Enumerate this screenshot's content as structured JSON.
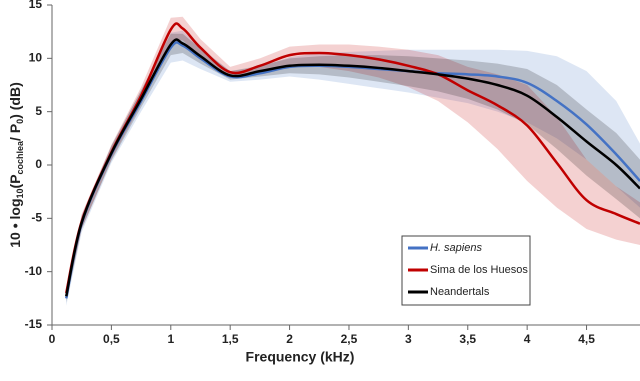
{
  "chart_data": {
    "type": "line",
    "x_label": "Frequency (kHz)",
    "y_label": [
      "10 • log",
      "10",
      "(P",
      "cochlea",
      "/ P",
      "0",
      ")  (dB)"
    ],
    "x": [
      0.12,
      0.25,
      0.5,
      0.75,
      1.0,
      1.1,
      1.25,
      1.5,
      1.75,
      2.0,
      2.25,
      2.5,
      2.75,
      3.0,
      3.25,
      3.5,
      3.75,
      4.0,
      4.25,
      4.5,
      4.75,
      4.95
    ],
    "series": [
      {
        "name": "H. sapiens",
        "color": "#4472c4",
        "values": [
          -12.5,
          -5.5,
          1.0,
          6.0,
          11.0,
          11.2,
          10.0,
          8.3,
          8.6,
          9.2,
          9.3,
          9.2,
          9.0,
          8.8,
          8.6,
          8.5,
          8.3,
          7.7,
          6.0,
          3.8,
          1.0,
          -1.5
        ],
        "lower": [
          -13.2,
          -6.3,
          0.2,
          5.0,
          9.6,
          9.8,
          9.0,
          7.8,
          8.0,
          8.3,
          8.0,
          7.6,
          7.2,
          6.8,
          6.3,
          5.8,
          5.0,
          4.0,
          2.5,
          0.5,
          -2.0,
          -4.0
        ],
        "upper": [
          -11.8,
          -4.7,
          1.8,
          7.0,
          12.4,
          12.6,
          11.0,
          8.8,
          9.2,
          10.1,
          10.5,
          10.6,
          10.7,
          10.8,
          10.8,
          10.8,
          10.8,
          10.7,
          10.2,
          8.8,
          6.0,
          2.0
        ]
      },
      {
        "name": "Sima de los Huesos",
        "color": "#c00000",
        "values": [
          -12.0,
          -5.3,
          1.2,
          6.5,
          12.7,
          12.8,
          11.0,
          8.7,
          9.3,
          10.3,
          10.5,
          10.3,
          9.9,
          9.3,
          8.5,
          7.0,
          5.6,
          3.7,
          0.2,
          -3.3,
          -4.6,
          -5.5
        ],
        "lower": [
          -12.6,
          -6.0,
          0.5,
          5.7,
          11.5,
          11.7,
          10.2,
          8.2,
          8.6,
          9.3,
          9.2,
          8.8,
          8.2,
          7.3,
          6.0,
          4.0,
          1.5,
          -1.5,
          -4.0,
          -6.0,
          -7.0,
          -7.5
        ],
        "upper": [
          -11.4,
          -4.6,
          1.9,
          7.3,
          13.8,
          13.9,
          11.8,
          9.2,
          10.0,
          11.1,
          11.3,
          11.3,
          11.1,
          10.8,
          10.3,
          9.2,
          8.5,
          7.5,
          4.5,
          0.5,
          -2.0,
          -3.5
        ]
      },
      {
        "name": "Neandertals",
        "color": "#000000",
        "values": [
          -12.3,
          -5.4,
          1.1,
          6.2,
          11.3,
          11.4,
          10.2,
          8.4,
          8.8,
          9.3,
          9.4,
          9.3,
          9.1,
          8.8,
          8.5,
          8.1,
          7.5,
          6.5,
          4.5,
          2.2,
          0.0,
          -2.2
        ],
        "lower": [
          -12.9,
          -6.0,
          0.4,
          5.4,
          10.3,
          10.5,
          9.5,
          8.0,
          8.3,
          8.6,
          8.5,
          8.2,
          7.8,
          7.4,
          6.9,
          6.2,
          5.2,
          3.8,
          1.5,
          -1.0,
          -3.2,
          -5.0
        ],
        "upper": [
          -11.7,
          -4.8,
          1.8,
          7.0,
          12.3,
          12.3,
          10.9,
          8.8,
          9.3,
          10.0,
          10.2,
          10.3,
          10.3,
          10.2,
          10.0,
          9.8,
          9.5,
          9.0,
          7.5,
          5.2,
          3.0,
          0.5
        ]
      }
    ],
    "xlim": [
      0,
      4.95
    ],
    "ylim": [
      -15,
      15
    ],
    "xticks": [
      0,
      {
        "value": 0.5,
        "label": "0,5"
      },
      1,
      {
        "value": 1.5,
        "label": "1,5"
      },
      2,
      {
        "value": 2.5,
        "label": "2,5"
      },
      3,
      {
        "value": 3.5,
        "label": "3,5"
      },
      4,
      {
        "value": 4.5,
        "label": "4,5"
      }
    ],
    "yticks": [
      15,
      10,
      5,
      0,
      -5,
      -10,
      -15
    ],
    "legend": "lower right",
    "grid": false
  }
}
